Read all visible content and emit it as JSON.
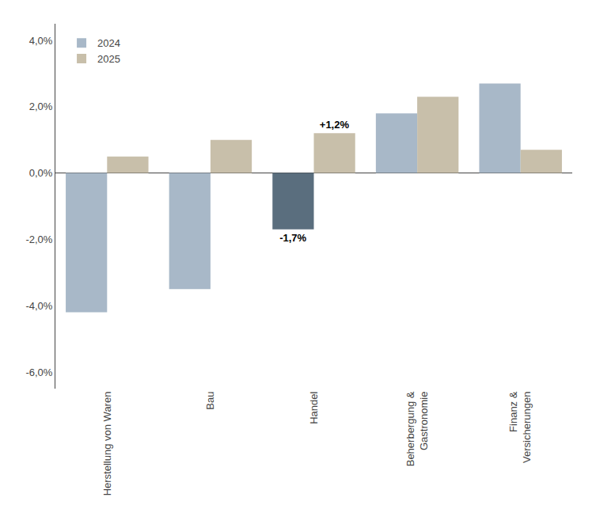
{
  "chart_data": {
    "type": "bar",
    "categories": [
      "Herstellung von Waren",
      "Bau",
      "Handel",
      "Beherbergung &\nGastronomie",
      "Finanz &\nVersicherungen"
    ],
    "series": [
      {
        "name": "2024",
        "colors": [
          "#a8b8c8",
          "#a8b8c8",
          "#5a6e7e",
          "#a8b8c8",
          "#a8b8c8"
        ],
        "values": [
          -4.2,
          -3.5,
          -1.7,
          1.8,
          2.7
        ]
      },
      {
        "name": "2025",
        "color": "#c8bfaa",
        "values": [
          0.5,
          1.0,
          1.2,
          2.3,
          0.7
        ]
      }
    ],
    "annotations": [
      {
        "text": "-1,7%",
        "category": "Handel",
        "series": "2024"
      },
      {
        "text": "+1,2%",
        "category": "Handel",
        "series": "2025"
      }
    ],
    "ylim": [
      -6.5,
      4.5
    ],
    "yticks": [
      {
        "value": -6.0,
        "label": "-6,0%"
      },
      {
        "value": -4.0,
        "label": "-4,0%"
      },
      {
        "value": -2.0,
        "label": "-2,0%"
      },
      {
        "value": 0.0,
        "label": "0,0%"
      },
      {
        "value": 2.0,
        "label": "2,0%"
      },
      {
        "value": 4.0,
        "label": "4,0%"
      }
    ],
    "grid": false,
    "legend": "upper left"
  }
}
